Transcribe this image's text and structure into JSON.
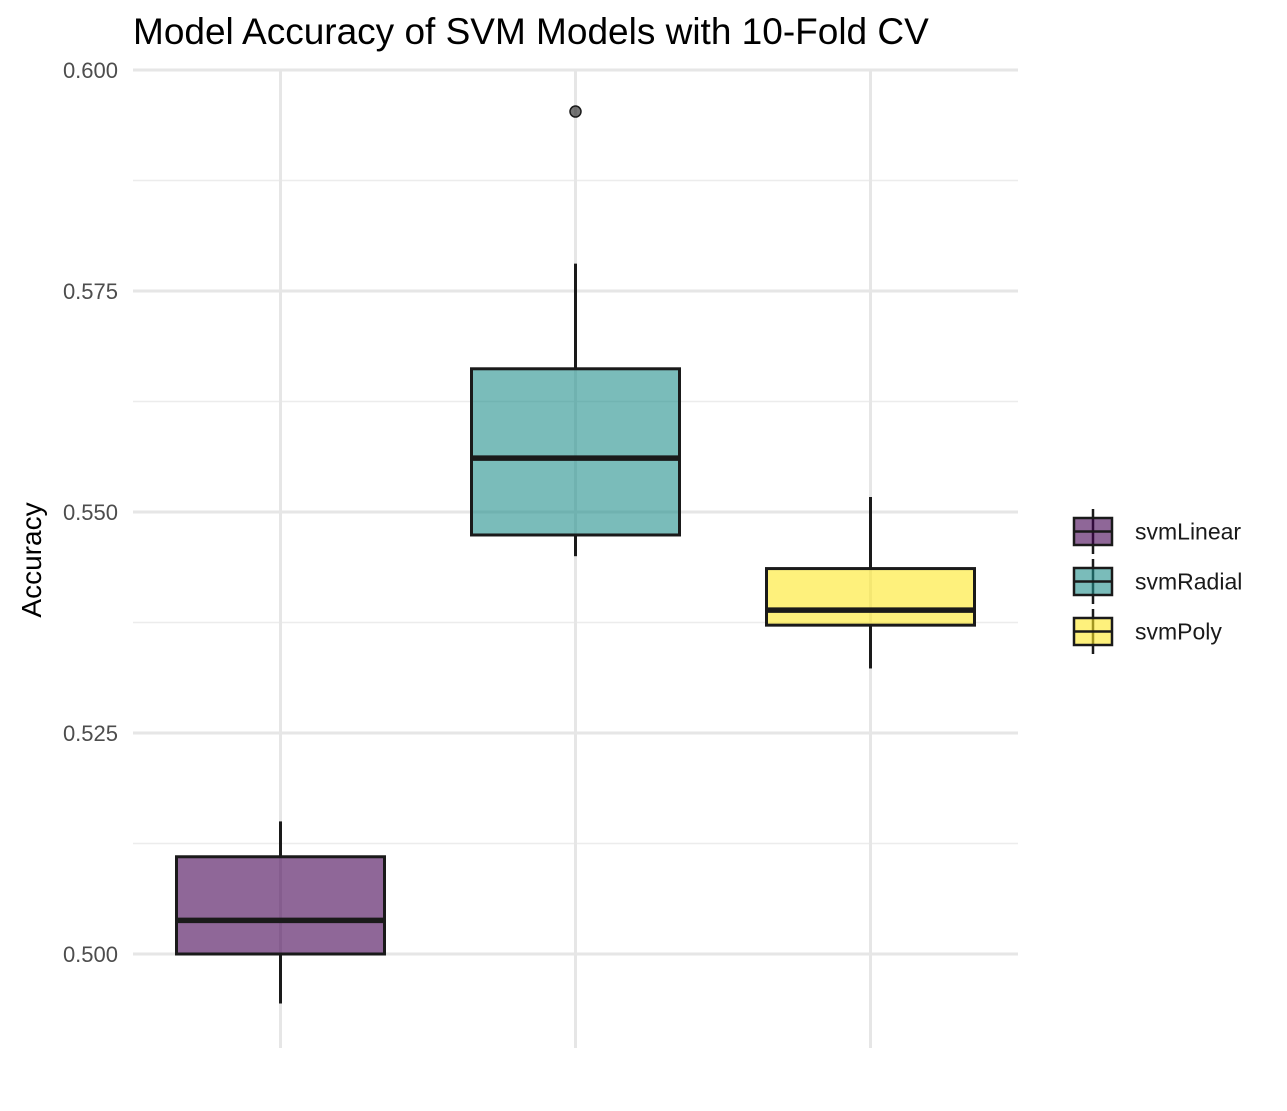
{
  "chart_data": {
    "type": "boxplot",
    "title": "Model Accuracy of SVM Models with 10-Fold CV",
    "xlabel": "",
    "ylabel": "Accuracy",
    "ylim": [
      0.489,
      0.6
    ],
    "yticks": [
      "0.500",
      "0.525",
      "0.550",
      "0.575",
      "0.600"
    ],
    "ytick_values": [
      0.5,
      0.525,
      0.55,
      0.575,
      0.6
    ],
    "grid": true,
    "legend_position": "right",
    "series": [
      {
        "name": "svmLinear",
        "color": "#440154",
        "min": 0.4944,
        "q1": 0.5,
        "median": 0.5038,
        "q3": 0.511,
        "max": 0.515,
        "outliers": []
      },
      {
        "name": "svmRadial",
        "color": "#21908C",
        "min": 0.545,
        "q1": 0.5474,
        "median": 0.5561,
        "q3": 0.5662,
        "max": 0.5781,
        "outliers": [
          0.5953
        ]
      },
      {
        "name": "svmPoly",
        "color": "#FDE725",
        "min": 0.5323,
        "q1": 0.5372,
        "median": 0.5389,
        "q3": 0.5436,
        "max": 0.5517,
        "outliers": []
      }
    ]
  }
}
